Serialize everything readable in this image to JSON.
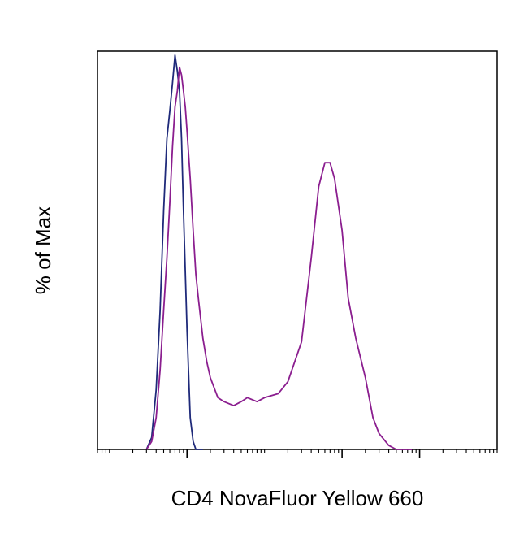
{
  "chart_data": {
    "type": "line",
    "title": "",
    "xlabel": "CD4 NovaFluor Yellow 660",
    "ylabel": "% of Max",
    "x_scale": "log",
    "xlim": [
      0.7,
      100000
    ],
    "ylim": [
      0,
      100
    ],
    "major_ticks_x": [
      10,
      1000,
      10000
    ],
    "x_tick_labels": [],
    "y_tick_labels": [],
    "grid": false,
    "legend": "none",
    "series": [
      {
        "color": "#1f2a7a",
        "x": [
          3,
          3.5,
          4,
          4.5,
          5,
          5.5,
          6,
          6.5,
          7,
          7.5,
          8,
          8.5,
          9,
          10,
          11,
          12,
          13,
          14,
          16
        ],
        "y": [
          0,
          3,
          15,
          35,
          60,
          78,
          85,
          92,
          99,
          95,
          90,
          78,
          60,
          30,
          8,
          2,
          0,
          0,
          0
        ]
      },
      {
        "color": "#8b1e8f",
        "x": [
          3,
          3.5,
          4,
          4.5,
          5,
          5.5,
          6,
          6.5,
          7,
          7.5,
          8,
          8.5,
          9,
          9.5,
          10,
          11,
          12,
          13,
          14,
          16,
          18,
          20,
          25,
          30,
          40,
          50,
          60,
          80,
          100,
          150,
          200,
          300,
          400,
          500,
          600,
          700,
          800,
          1000,
          1200,
          1500,
          2000,
          2500,
          3000,
          4000,
          5000,
          6000,
          7000,
          8000
        ],
        "y": [
          0,
          2,
          8,
          20,
          35,
          48,
          62,
          76,
          86,
          90,
          96,
          94,
          90,
          86,
          80,
          68,
          55,
          44,
          38,
          28,
          22,
          18,
          13,
          12,
          11,
          12,
          13,
          12,
          13,
          14,
          17,
          27,
          48,
          66,
          72,
          72,
          68,
          55,
          38,
          28,
          18,
          8,
          4,
          1,
          0,
          0,
          0,
          0
        ]
      }
    ]
  }
}
